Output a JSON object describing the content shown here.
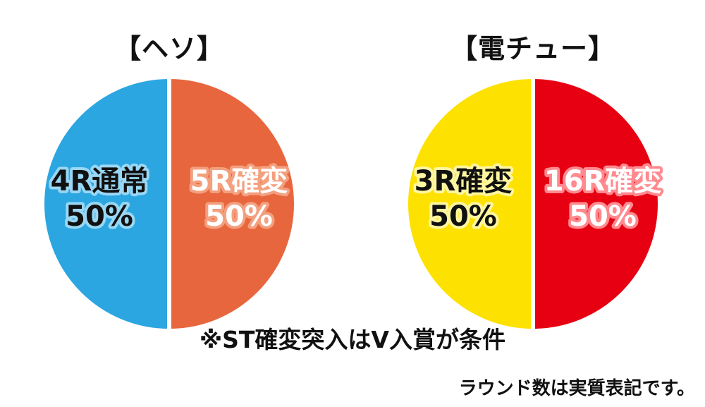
{
  "chart_data": [
    {
      "type": "pie",
      "title": "【ヘソ】",
      "slices": [
        {
          "label": "4R通常",
          "value": 50,
          "value_label": "50%",
          "color": "#2ba6e0",
          "label_fill": "#111111",
          "label_stroke": "#9ad7f5"
        },
        {
          "label": "5R確変",
          "value": 50,
          "value_label": "50%",
          "color": "#e8663e",
          "label_fill": "#ffffff",
          "label_stroke": "#f3a07f"
        }
      ]
    },
    {
      "type": "pie",
      "title": "【電チュー】",
      "slices": [
        {
          "label": "3R確変",
          "value": 50,
          "value_label": "50%",
          "color": "#fde100",
          "label_fill": "#111111",
          "label_stroke": "#fff6a0"
        },
        {
          "label": "16R確変",
          "value": 50,
          "value_label": "50%",
          "color": "#e60012",
          "label_fill": "#ffffff",
          "label_stroke": "#ff8a8f"
        }
      ]
    }
  ],
  "note": "※ST確変突入はV入賞が条件",
  "footnote": "ラウンド数は実質表記です。"
}
